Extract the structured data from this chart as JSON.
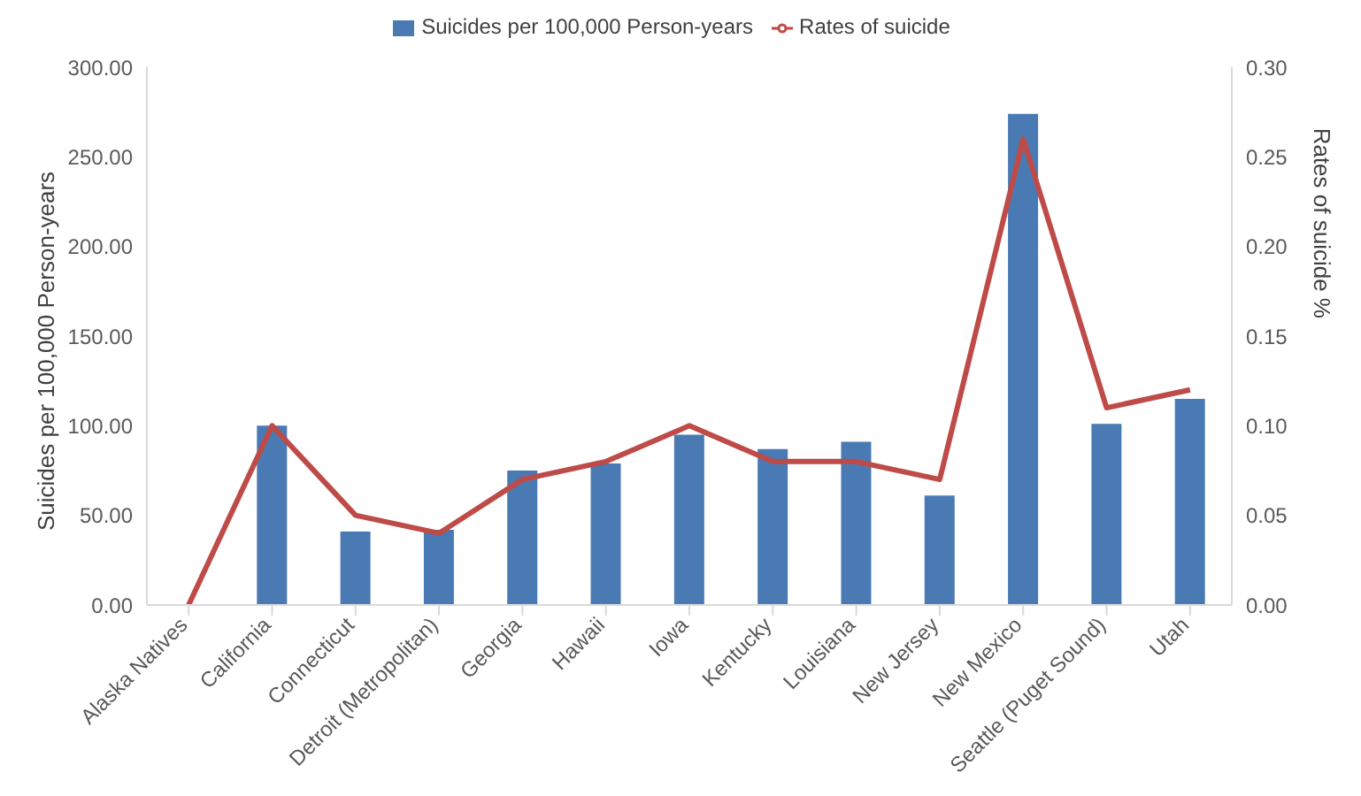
{
  "chart_data": {
    "type": "bar",
    "categories": [
      "Alaska Natives",
      "California",
      "Connecticut",
      "Detroit (Metropolitan)",
      "Georgia",
      "Hawaii",
      "Iowa",
      "Kentucky",
      "Louisiana",
      "New Jersey",
      "New Mexico",
      "Seattle (Puget Sound)",
      "Utah"
    ],
    "series": [
      {
        "name": "Suicides per 100,000 Person-years",
        "color": "#4a7ab4",
        "values": [
          0,
          100,
          41,
          42,
          75,
          79,
          95,
          87,
          91,
          61,
          274,
          101,
          115
        ]
      },
      {
        "name": "Rates of suicide",
        "type": "line",
        "axis": "y2",
        "color": "#be4b48",
        "values": [
          0,
          0.1,
          0.05,
          0.04,
          0.07,
          0.08,
          0.1,
          0.08,
          0.08,
          0.07,
          0.26,
          0.11,
          0.12
        ]
      }
    ],
    "ylabel": "Suicides per 100,000 Person-years",
    "y2label": "Rates of suicide %",
    "ylim": [
      0,
      300
    ],
    "yticks": [
      {
        "value": 0,
        "label": "0.00"
      },
      {
        "value": 50,
        "label": "50.00"
      },
      {
        "value": 100,
        "label": "100.00"
      },
      {
        "value": 150,
        "label": "150.00"
      },
      {
        "value": 200,
        "label": "200.00"
      },
      {
        "value": 250,
        "label": "250.00"
      },
      {
        "value": 300,
        "label": "300.00"
      }
    ],
    "y2lim": [
      0,
      0.3
    ],
    "y2ticks": [
      {
        "value": 0,
        "label": "0.00"
      },
      {
        "value": 0.05,
        "label": "0.05"
      },
      {
        "value": 0.1,
        "label": "0.10"
      },
      {
        "value": 0.15,
        "label": "0.15"
      },
      {
        "value": 0.2,
        "label": "0.20"
      },
      {
        "value": 0.25,
        "label": "0.25"
      },
      {
        "value": 0.3,
        "label": "0.30"
      }
    ],
    "grid": false,
    "legend": "top",
    "marker": "none"
  }
}
